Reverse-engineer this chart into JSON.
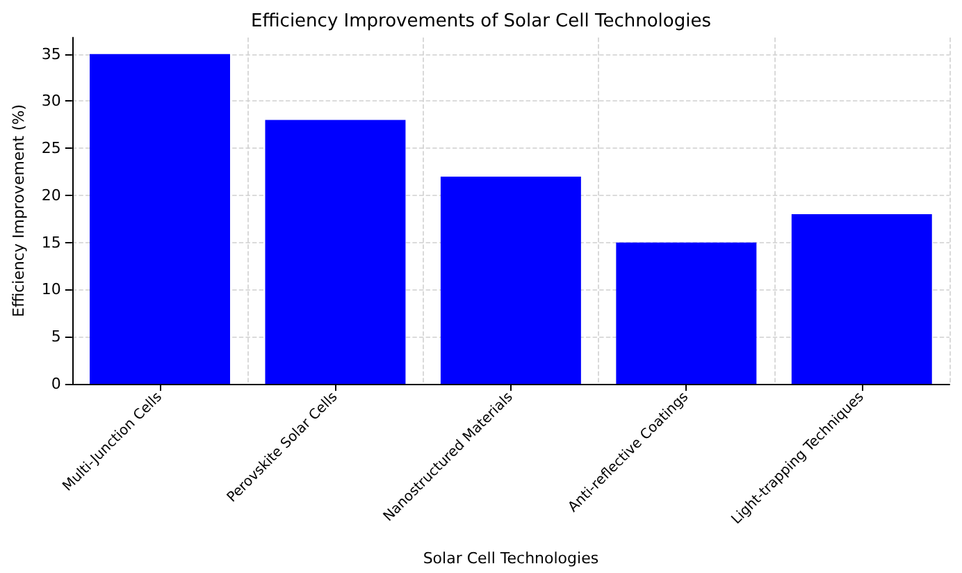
{
  "chart_data": {
    "type": "bar",
    "title": "Efficiency Improvements of Solar Cell Technologies",
    "xlabel": "Solar Cell Technologies",
    "ylabel": "Efficiency Improvement (%)",
    "categories": [
      "Multi-Junction Cells",
      "Perovskite Solar Cells",
      "Nanostructured Materials",
      "Anti-reflective Coatings",
      "Light-trapping Techniques"
    ],
    "values": [
      35,
      28,
      22,
      15,
      18
    ],
    "color": "#0000ff",
    "ylim": [
      0,
      36.75
    ],
    "yticks": [
      0,
      5,
      10,
      15,
      20,
      25,
      30,
      35
    ],
    "grid": true
  }
}
